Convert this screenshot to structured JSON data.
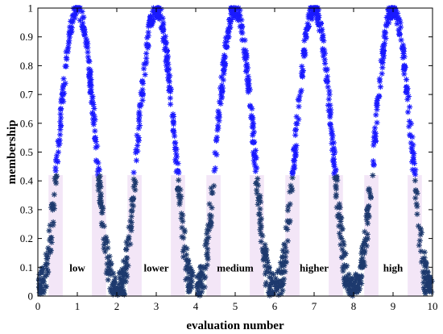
{
  "chart_data": {
    "type": "scatter",
    "xlabel": "evaluation number",
    "ylabel": "membership",
    "xlim": [
      0,
      10
    ],
    "ylim": [
      0,
      1
    ],
    "xticks": [
      "0",
      "1",
      "2",
      "3",
      "4",
      "5",
      "6",
      "7",
      "8",
      "9",
      "10"
    ],
    "yticks": [
      "0",
      "0.1",
      "0.2",
      "0.3",
      "0.4",
      "0.5",
      "0.6",
      "0.7",
      "0.8",
      "0.9",
      "1"
    ],
    "grid": false,
    "marker": "asterisk",
    "colors": {
      "high_membership": "#1a1aff",
      "low_membership": "#1e3a6e",
      "band": "#f3e6f7"
    },
    "series": [
      {
        "label": "low",
        "label_x": 1.0,
        "label_y": 0.1,
        "peak_x": 1.0,
        "peak_y": 1.0
      },
      {
        "label": "lower",
        "label_x": 3.0,
        "label_y": 0.1,
        "peak_x": 3.0,
        "peak_y": 1.0
      },
      {
        "label": "medium",
        "label_x": 5.0,
        "label_y": 0.1,
        "peak_x": 5.0,
        "peak_y": 1.0
      },
      {
        "label": "higher",
        "label_x": 7.0,
        "label_y": 0.1,
        "peak_x": 7.0,
        "peak_y": 1.0
      },
      {
        "label": "high",
        "label_x": 9.0,
        "label_y": 0.1,
        "peak_x": 9.0,
        "peak_y": 1.0
      }
    ]
  }
}
